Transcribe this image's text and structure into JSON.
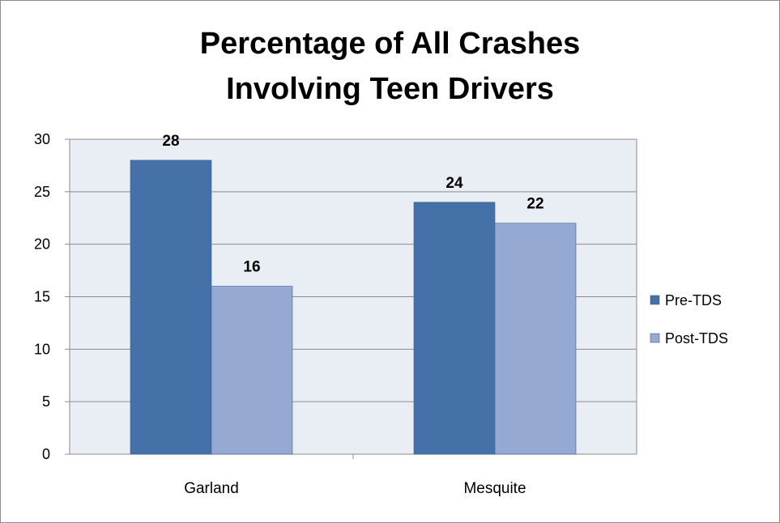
{
  "chart_data": {
    "type": "bar",
    "title_lines": [
      "Percentage of All Crashes",
      "Involving Teen Drivers"
    ],
    "categories": [
      "Garland",
      "Mesquite"
    ],
    "series": [
      {
        "name": "Pre-TDS",
        "values": [
          28,
          24
        ],
        "color": "#4472A8"
      },
      {
        "name": "Post-TDS",
        "values": [
          16,
          22
        ],
        "color": "#95A9D3"
      }
    ],
    "ylim": [
      0,
      30
    ],
    "yticks": [
      0,
      5,
      10,
      15,
      20,
      25,
      30
    ],
    "grid": true,
    "legend_position": "right",
    "plot_background": "#E9EDF4"
  }
}
